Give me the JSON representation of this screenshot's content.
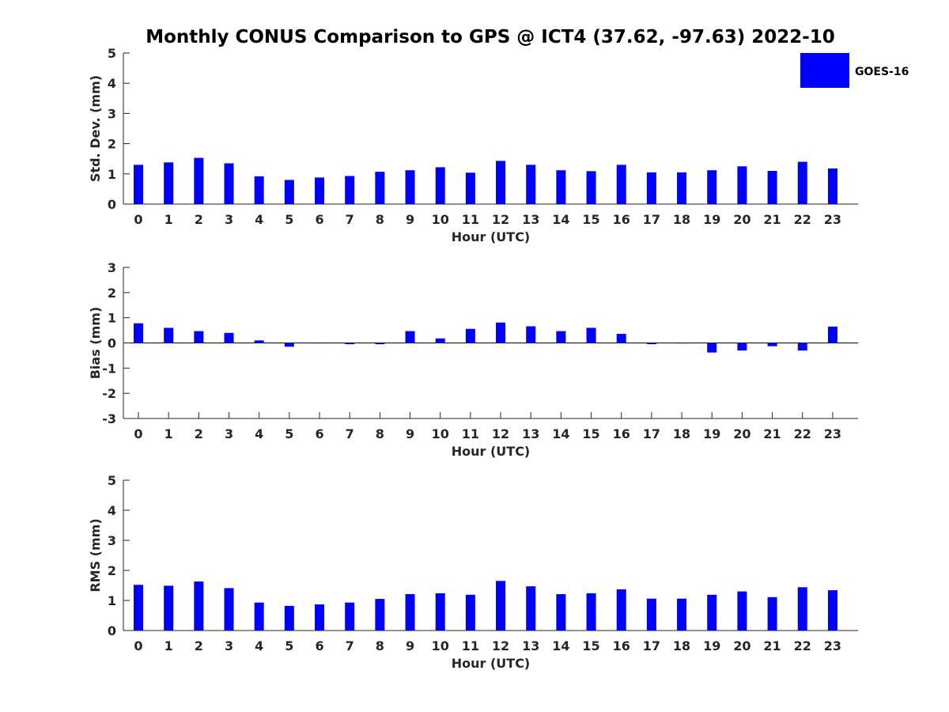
{
  "colors": {
    "bar": "#0000ff",
    "axis": "#262626",
    "background": "#ffffff"
  },
  "chart_data": {
    "type": "bar",
    "title": "Monthly CONUS Comparison to GPS @ ICT4 (37.62, -97.63) 2022-10",
    "legend": {
      "entries": [
        "GOES-16"
      ],
      "placement": "top-right"
    },
    "categories": [
      "0",
      "1",
      "2",
      "3",
      "4",
      "5",
      "6",
      "7",
      "8",
      "9",
      "10",
      "11",
      "12",
      "13",
      "14",
      "15",
      "16",
      "17",
      "18",
      "19",
      "20",
      "21",
      "22",
      "23"
    ],
    "panels": [
      {
        "xlabel": "Hour (UTC)",
        "ylabel": "Std. Dev. (mm)",
        "ylim": [
          0,
          5
        ],
        "yticks": [
          "0",
          "1",
          "2",
          "3",
          "4",
          "5"
        ],
        "grid": false,
        "series": [
          {
            "name": "GOES-16",
            "values": [
              1.3,
              1.38,
              1.53,
              1.35,
              0.92,
              0.8,
              0.88,
              0.93,
              1.07,
              1.12,
              1.22,
              1.04,
              1.43,
              1.3,
              1.12,
              1.09,
              1.3,
              1.05,
              1.05,
              1.12,
              1.25,
              1.1,
              1.4,
              1.18
            ]
          }
        ]
      },
      {
        "xlabel": "Hour (UTC)",
        "ylabel": "Bias (mm)",
        "ylim": [
          -3,
          3
        ],
        "yticks": [
          "-3",
          "-2",
          "-1",
          "0",
          "1",
          "2",
          "3"
        ],
        "grid": false,
        "series": [
          {
            "name": "GOES-16",
            "values": [
              0.78,
              0.6,
              0.47,
              0.4,
              0.1,
              -0.15,
              -0.02,
              -0.05,
              -0.05,
              0.47,
              0.18,
              0.56,
              0.81,
              0.66,
              0.47,
              0.6,
              0.36,
              -0.05,
              -0.02,
              -0.38,
              -0.3,
              -0.13,
              -0.3,
              0.65
            ]
          }
        ]
      },
      {
        "xlabel": "Hour (UTC)",
        "ylabel": "RMS (mm)",
        "ylim": [
          0,
          5
        ],
        "yticks": [
          "0",
          "1",
          "2",
          "3",
          "4",
          "5"
        ],
        "grid": false,
        "series": [
          {
            "name": "GOES-16",
            "values": [
              1.52,
              1.49,
              1.63,
              1.41,
              0.93,
              0.82,
              0.87,
              0.93,
              1.05,
              1.21,
              1.24,
              1.19,
              1.65,
              1.47,
              1.21,
              1.24,
              1.37,
              1.06,
              1.06,
              1.19,
              1.3,
              1.11,
              1.44,
              1.34
            ]
          }
        ]
      }
    ]
  }
}
